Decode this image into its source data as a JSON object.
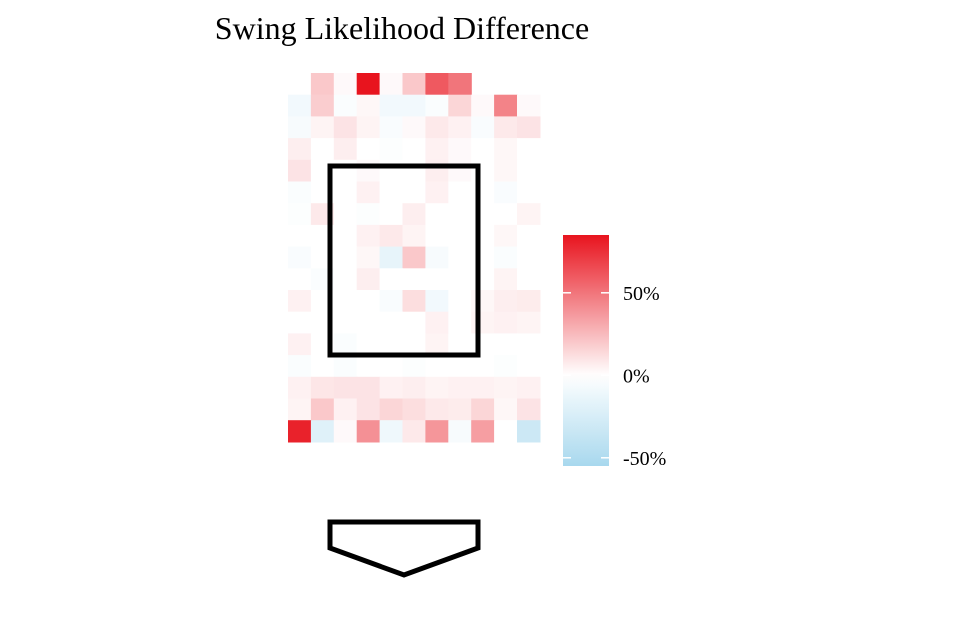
{
  "chart_data": {
    "type": "heatmap",
    "title": "Swing Likelihood Difference",
    "xlabel": "",
    "ylabel": "",
    "grid": false,
    "legend_position": "right",
    "color_scale": {
      "low_color": "#a8d8ee",
      "mid_color": "#ffffff",
      "high_color": "#e8141e",
      "range": [
        -0.55,
        0.85
      ],
      "ticks": [
        {
          "value": 0.5,
          "label": "50%"
        },
        {
          "value": 0.0,
          "label": "0%"
        },
        {
          "value": -0.5,
          "label": "-50%"
        }
      ]
    },
    "grid_size": {
      "columns": 11,
      "rows": 17
    },
    "values": [
      [
        null,
        0.2,
        0.02,
        0.85,
        0.02,
        0.2,
        0.6,
        0.5,
        null,
        null,
        null
      ],
      [
        -0.08,
        0.18,
        -0.03,
        0.03,
        -0.08,
        -0.08,
        -0.03,
        0.15,
        0.02,
        0.45,
        0.02
      ],
      [
        -0.05,
        0.04,
        0.1,
        0.04,
        -0.04,
        0.02,
        0.08,
        0.05,
        -0.04,
        0.08,
        0.1
      ],
      [
        0.06,
        0.0,
        0.06,
        0.0,
        -0.02,
        0.0,
        0.05,
        0.02,
        0.0,
        0.03,
        0.0
      ],
      [
        0.1,
        0.0,
        0.0,
        0.02,
        0.0,
        0.0,
        0.06,
        0.02,
        0.0,
        0.03,
        0.0
      ],
      [
        -0.03,
        0.0,
        0.0,
        0.05,
        0.0,
        0.0,
        0.05,
        0.0,
        0.0,
        -0.04,
        0.0
      ],
      [
        -0.02,
        0.08,
        0.0,
        -0.02,
        0.0,
        0.06,
        0.0,
        0.0,
        0.0,
        0.0,
        0.04
      ],
      [
        0.0,
        0.0,
        0.0,
        0.05,
        0.08,
        0.04,
        0.0,
        0.0,
        0.0,
        0.03,
        0.0
      ],
      [
        -0.04,
        0.0,
        0.0,
        0.03,
        -0.15,
        0.2,
        -0.05,
        0.0,
        0.0,
        -0.03,
        0.0
      ],
      [
        0.0,
        -0.03,
        0.0,
        0.06,
        0.0,
        0.0,
        0.0,
        0.0,
        0.0,
        0.04,
        0.0
      ],
      [
        0.05,
        0.0,
        0.0,
        0.0,
        -0.04,
        0.12,
        -0.08,
        0.0,
        0.03,
        0.06,
        0.07
      ],
      [
        0.0,
        0.0,
        0.0,
        0.0,
        0.0,
        0.0,
        0.05,
        0.0,
        0.04,
        0.05,
        0.04
      ],
      [
        0.05,
        0.0,
        -0.03,
        0.0,
        0.0,
        0.0,
        0.04,
        0.0,
        0.0,
        0.0,
        0.0
      ],
      [
        -0.03,
        0.0,
        -0.03,
        0.0,
        0.0,
        -0.02,
        0.0,
        0.0,
        0.0,
        -0.02,
        0.0
      ],
      [
        0.05,
        0.09,
        0.1,
        0.1,
        0.05,
        0.06,
        0.04,
        0.05,
        0.05,
        0.04,
        0.05
      ],
      [
        0.04,
        0.2,
        0.05,
        0.1,
        0.15,
        0.12,
        0.08,
        0.07,
        0.15,
        0.03,
        0.1
      ],
      [
        0.8,
        -0.2,
        0.02,
        0.4,
        -0.1,
        0.08,
        0.38,
        -0.05,
        0.35,
        0.0,
        -0.32
      ]
    ],
    "strike_zone": {
      "col_start": 2,
      "col_end": 9,
      "row_start": 4,
      "row_end": 14
    },
    "home_plate": true
  }
}
